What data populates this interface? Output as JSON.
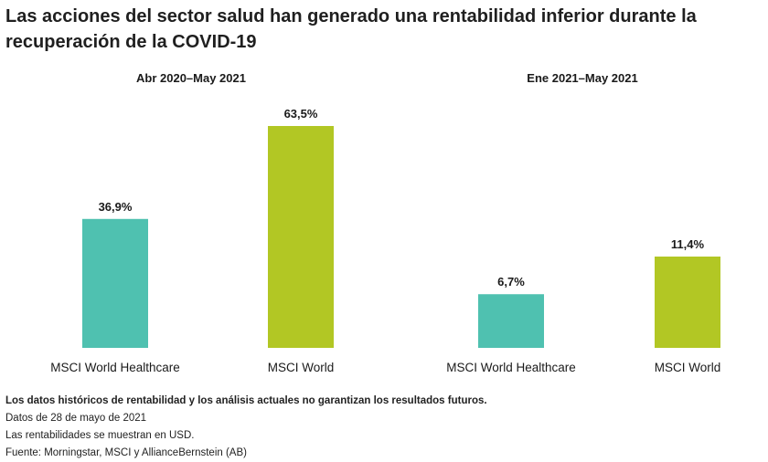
{
  "title": "Las acciones del sector salud han generado una rentabilidad inferior durante la recuperación de la COVID-19",
  "chart_data": [
    {
      "type": "bar",
      "subtitle": "Abr 2020–May 2021",
      "categories": [
        "MSCI World Healthcare",
        "MSCI World"
      ],
      "values": [
        36.9,
        63.5
      ],
      "value_labels": [
        "36,9%",
        "63,5%"
      ],
      "colors": [
        "#4fc1b0",
        "#b2c724"
      ],
      "unit": "%",
      "ylim": [
        0,
        63.5
      ],
      "grid": false,
      "legend": "none"
    },
    {
      "type": "bar",
      "subtitle": "Ene 2021–May 2021",
      "categories": [
        "MSCI World Healthcare",
        "MSCI World"
      ],
      "values": [
        6.7,
        11.4
      ],
      "value_labels": [
        "6,7%",
        "11,4%"
      ],
      "colors": [
        "#4fc1b0",
        "#b2c724"
      ],
      "unit": "%",
      "ylim": [
        0,
        11.4
      ],
      "grid": false,
      "legend": "none"
    }
  ],
  "notes": {
    "disclaimer": "Los datos históricos de rentabilidad y los análisis actuales no garantizan los resultados futuros.",
    "date": "Datos de 28 de mayo de 2021",
    "currency": "Las rentabilidades se muestran en USD.",
    "source": "Fuente: Morningstar, MSCI y AllianceBernstein (AB)"
  }
}
